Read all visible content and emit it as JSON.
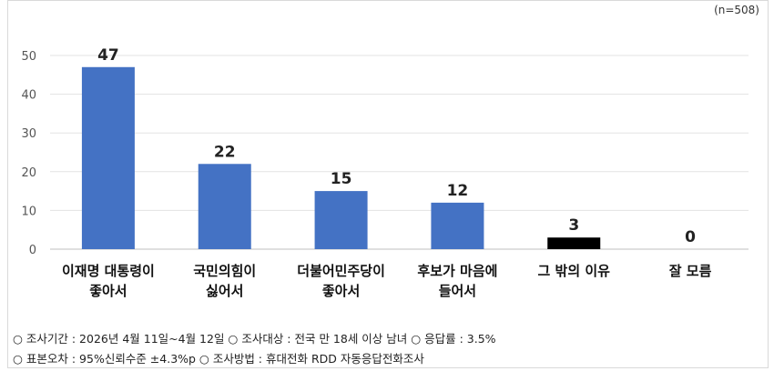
{
  "sample_size": "(n=508)",
  "chart_data": {
    "type": "bar",
    "categories": [
      [
        "이재명 대통령이",
        "좋아서"
      ],
      [
        "국민의힘이",
        "싫어서"
      ],
      [
        "더불어민주당이",
        "좋아서"
      ],
      [
        "후보가 마음에",
        "들어서"
      ],
      [
        "그 밖의 이유"
      ],
      [
        "잘 모름"
      ]
    ],
    "values": [
      47,
      22,
      15,
      12,
      3,
      0
    ],
    "data_labels": [
      "47",
      "22",
      "15",
      "12",
      "3",
      "0"
    ],
    "bar_colors": [
      "#4472c4",
      "#4472c4",
      "#4472c4",
      "#4472c4",
      "#000000",
      "#4472c4"
    ],
    "ylim": [
      0,
      50
    ],
    "yticks": [
      "0",
      "10",
      "20",
      "30",
      "40",
      "50"
    ],
    "grid": true,
    "title": "",
    "xlabel": "",
    "ylabel": ""
  },
  "notes": {
    "line1": "○ 조사기간 : 2026년 4월 11일~4월 12일 ○ 조사대상 : 전국 만 18세 이상 남녀 ○ 응답률 : 3.5%",
    "line2": "○ 표본오차 : 95%신뢰수준 ±4.3%p ○ 조사방법 : 휴대전화 RDD 자동응답전화조사"
  }
}
